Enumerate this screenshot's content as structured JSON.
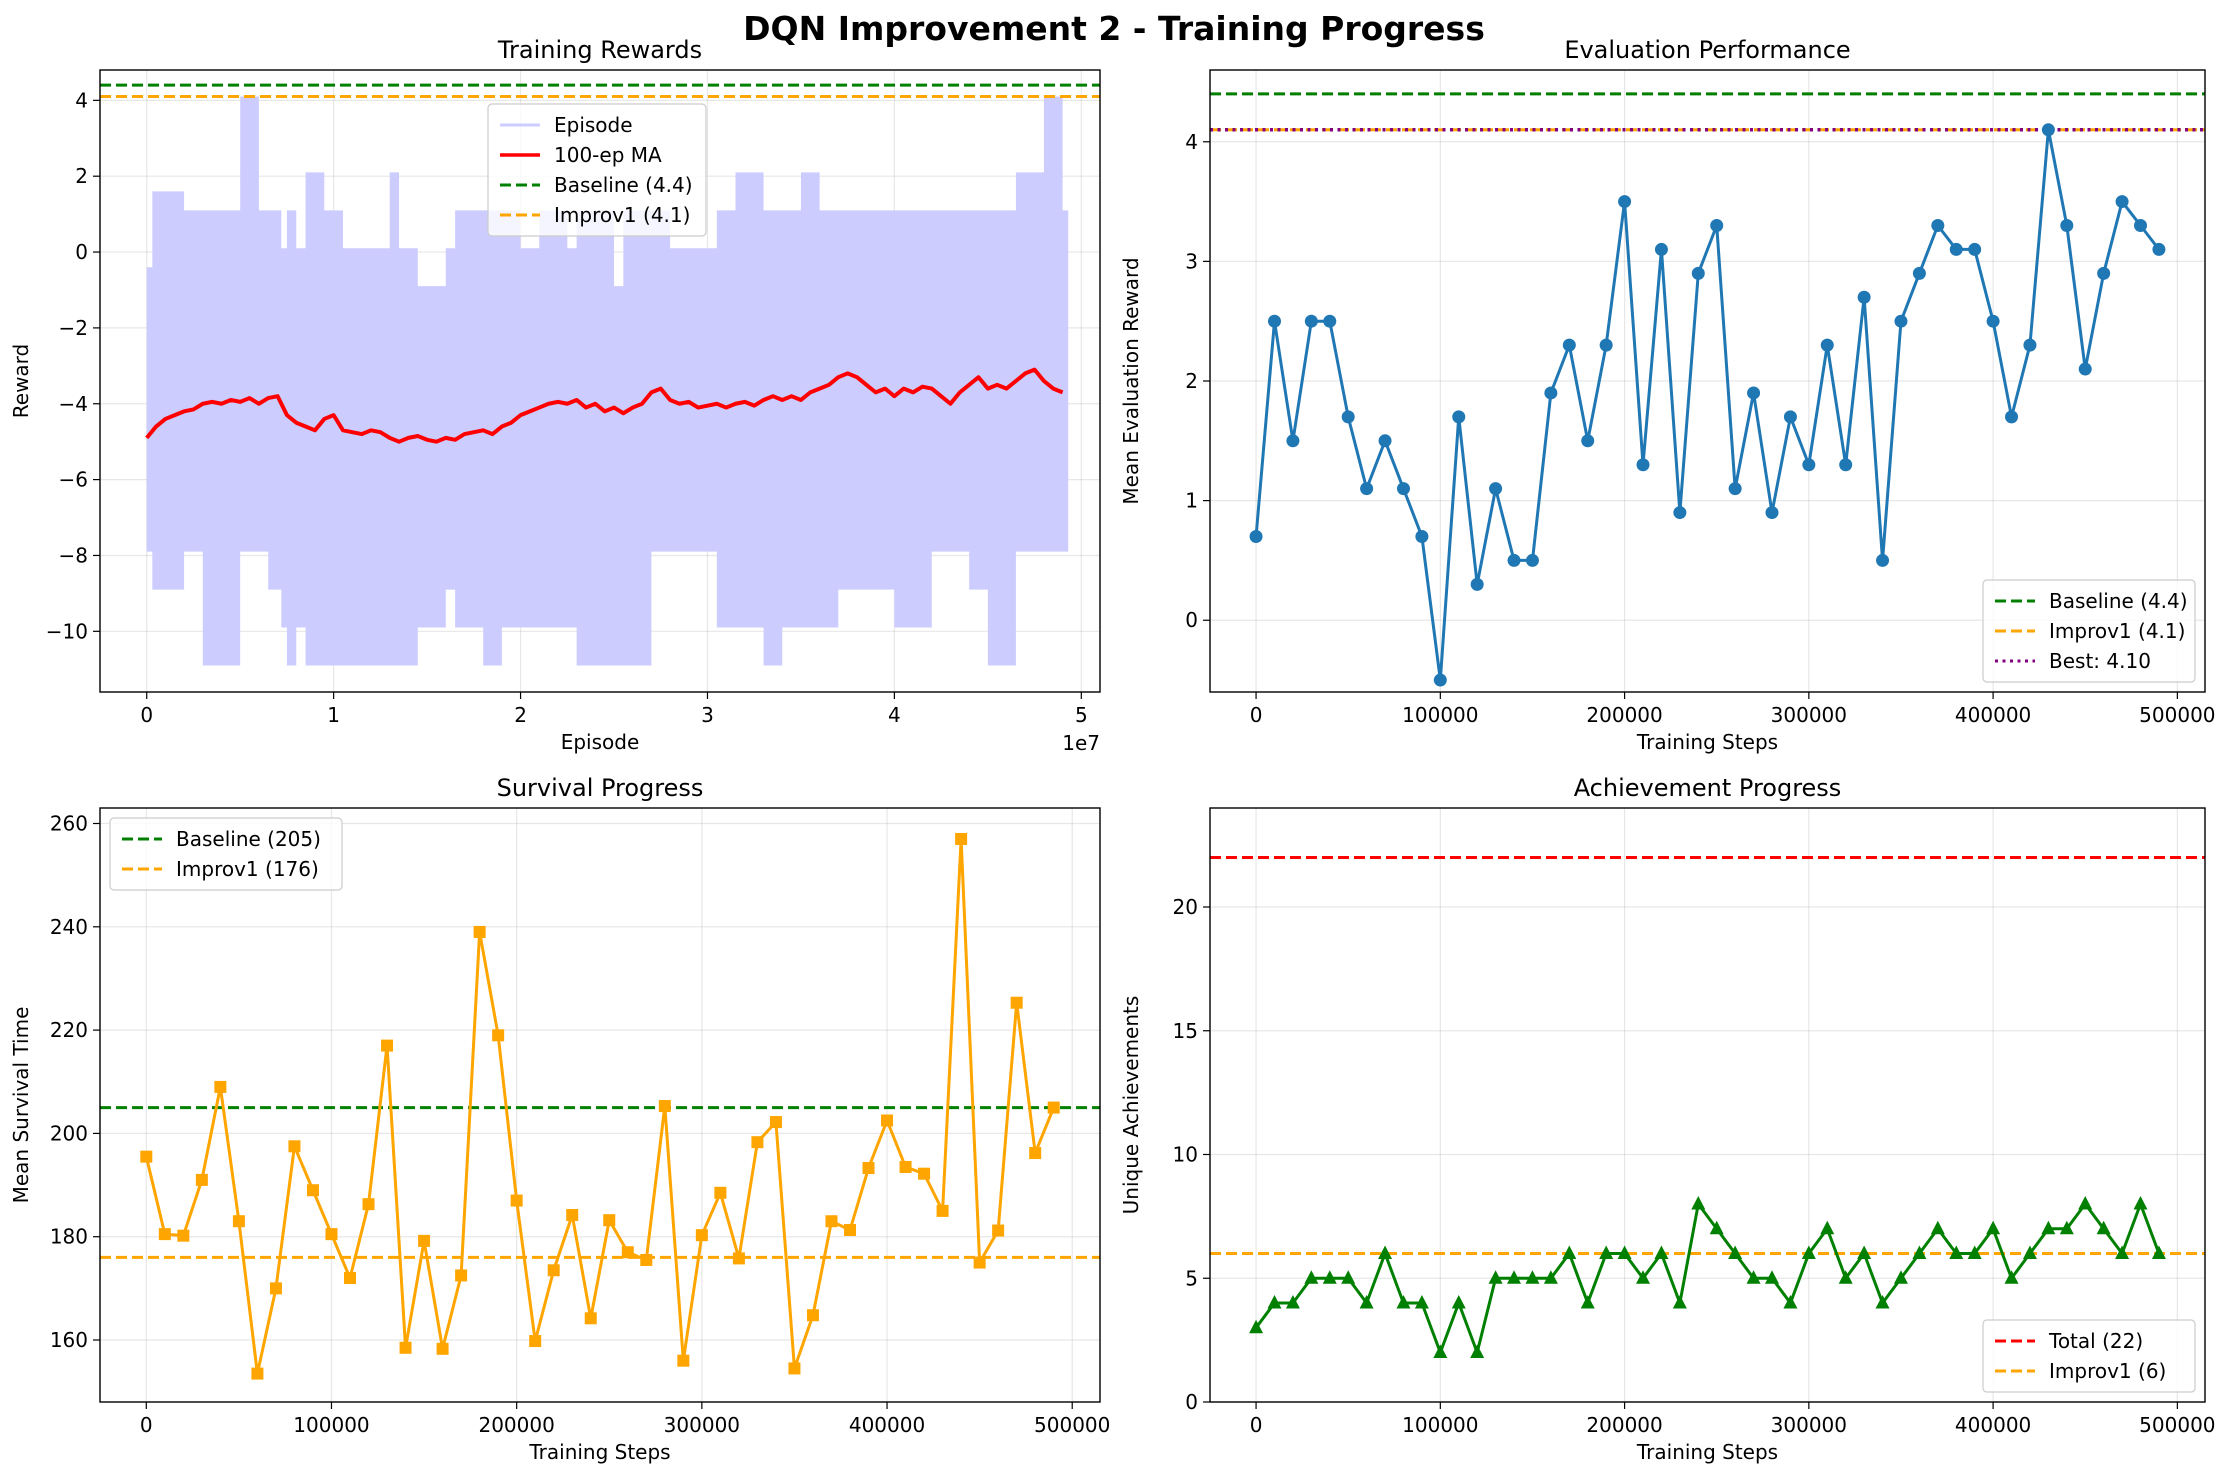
{
  "figure": {
    "title": "DQN Improvement 2 - Training Progress"
  },
  "colors": {
    "baseline": "#008000",
    "improv1": "#ffa500",
    "ma": "#ff0000",
    "episode_fill": "#ccccff",
    "eval_line": "#1f77b4",
    "best": "#800080",
    "survival_line": "#ffa500",
    "achievement_line": "#008000",
    "total": "#ff0000"
  },
  "chart_data": [
    {
      "id": "training-rewards",
      "type": "area",
      "title": "Training Rewards",
      "xlabel": "Episode",
      "ylabel": "Reward",
      "x_offset_label": "1e7",
      "xlim": [
        -0.25,
        5.1
      ],
      "ylim": [
        -11.6,
        4.8
      ],
      "xticks": [
        0,
        1,
        2,
        3,
        4,
        5
      ],
      "yticks": [
        -10,
        -8,
        -6,
        -4,
        -2,
        0,
        2,
        4
      ],
      "legend": [
        "Episode",
        "100-ep MA",
        "Baseline (4.4)",
        "Improv1 (4.1)"
      ],
      "legend_position": "upper center",
      "reference_lines": [
        {
          "name": "Baseline (4.4)",
          "y": 4.4,
          "color": "#008000",
          "style": "dashed"
        },
        {
          "name": "Improv1 (4.1)",
          "y": 4.1,
          "color": "#ffa500",
          "style": "dashed"
        }
      ],
      "episode_band": {
        "x": [
          0,
          0.03,
          0.2,
          0.3,
          0.5,
          0.6,
          0.65,
          0.72,
          0.75,
          0.8,
          0.85,
          0.95,
          1.0,
          1.05,
          1.2,
          1.3,
          1.35,
          1.45,
          1.6,
          1.65,
          1.8,
          1.9,
          2.0,
          2.1,
          2.25,
          2.3,
          2.5,
          2.55,
          2.7,
          2.8,
          2.9,
          3.05,
          3.15,
          3.3,
          3.4,
          3.5,
          3.6,
          3.7,
          3.8,
          4.0,
          4.2,
          4.4,
          4.5,
          4.65,
          4.8,
          4.9
        ],
        "high": [
          -0.4,
          1.6,
          1.1,
          1.1,
          4.1,
          1.1,
          1.1,
          0.1,
          1.1,
          0.1,
          2.1,
          1.1,
          1.1,
          0.1,
          0.1,
          2.1,
          0.1,
          -0.9,
          0.1,
          1.1,
          1.1,
          1.1,
          0.1,
          1.1,
          0.1,
          1.1,
          -0.9,
          1.1,
          1.1,
          0.1,
          0.1,
          1.1,
          2.1,
          1.1,
          1.1,
          2.1,
          1.1,
          1.1,
          1.1,
          1.1,
          1.1,
          1.1,
          1.1,
          2.1,
          4.1,
          1.1
        ],
        "low": [
          -7.9,
          -8.9,
          -7.9,
          -10.9,
          -7.9,
          -7.9,
          -8.9,
          -9.9,
          -10.9,
          -9.9,
          -10.9,
          -10.9,
          -10.9,
          -10.9,
          -10.9,
          -10.9,
          -10.9,
          -9.9,
          -8.9,
          -9.9,
          -10.9,
          -9.9,
          -9.9,
          -9.9,
          -9.9,
          -10.9,
          -10.9,
          -10.9,
          -7.9,
          -7.9,
          -7.9,
          -9.9,
          -9.9,
          -10.9,
          -9.9,
          -9.9,
          -9.9,
          -8.9,
          -8.9,
          -9.9,
          -7.9,
          -8.9,
          -10.9,
          -7.9,
          -7.9,
          -7.9
        ]
      },
      "series": [
        {
          "name": "100-ep MA",
          "x": [
            0,
            0.05,
            0.1,
            0.15,
            0.2,
            0.25,
            0.3,
            0.35,
            0.4,
            0.45,
            0.5,
            0.55,
            0.6,
            0.65,
            0.7,
            0.75,
            0.8,
            0.85,
            0.9,
            0.95,
            1.0,
            1.05,
            1.1,
            1.15,
            1.2,
            1.25,
            1.3,
            1.35,
            1.4,
            1.45,
            1.5,
            1.55,
            1.6,
            1.65,
            1.7,
            1.75,
            1.8,
            1.85,
            1.9,
            1.95,
            2.0,
            2.05,
            2.1,
            2.15,
            2.2,
            2.25,
            2.3,
            2.35,
            2.4,
            2.45,
            2.5,
            2.55,
            2.6,
            2.65,
            2.7,
            2.75,
            2.8,
            2.85,
            2.9,
            2.95,
            3.0,
            3.05,
            3.1,
            3.15,
            3.2,
            3.25,
            3.3,
            3.35,
            3.4,
            3.45,
            3.5,
            3.55,
            3.6,
            3.65,
            3.7,
            3.75,
            3.8,
            3.85,
            3.9,
            3.95,
            4.0,
            4.05,
            4.1,
            4.15,
            4.2,
            4.25,
            4.3,
            4.35,
            4.4,
            4.45,
            4.5,
            4.55,
            4.6,
            4.65,
            4.7,
            4.75,
            4.8,
            4.85,
            4.9
          ],
          "values": [
            -4.9,
            -4.6,
            -4.4,
            -4.3,
            -4.2,
            -4.15,
            -4.0,
            -3.95,
            -4.0,
            -3.9,
            -3.95,
            -3.85,
            -4.0,
            -3.85,
            -3.8,
            -4.3,
            -4.5,
            -4.6,
            -4.7,
            -4.4,
            -4.3,
            -4.7,
            -4.75,
            -4.8,
            -4.7,
            -4.75,
            -4.9,
            -5.0,
            -4.9,
            -4.85,
            -4.95,
            -5.0,
            -4.9,
            -4.95,
            -4.8,
            -4.75,
            -4.7,
            -4.8,
            -4.6,
            -4.5,
            -4.3,
            -4.2,
            -4.1,
            -4.0,
            -3.95,
            -4.0,
            -3.9,
            -4.1,
            -4.0,
            -4.2,
            -4.1,
            -4.25,
            -4.1,
            -4.0,
            -3.7,
            -3.6,
            -3.9,
            -4.0,
            -3.95,
            -4.1,
            -4.05,
            -4.0,
            -4.1,
            -4.0,
            -3.95,
            -4.05,
            -3.9,
            -3.8,
            -3.9,
            -3.8,
            -3.9,
            -3.7,
            -3.6,
            -3.5,
            -3.3,
            -3.2,
            -3.3,
            -3.5,
            -3.7,
            -3.6,
            -3.8,
            -3.6,
            -3.7,
            -3.55,
            -3.6,
            -3.8,
            -4.0,
            -3.7,
            -3.5,
            -3.3,
            -3.6,
            -3.5,
            -3.6,
            -3.4,
            -3.2,
            -3.1,
            -3.4,
            -3.6,
            -3.7
          ]
        }
      ]
    },
    {
      "id": "evaluation-performance",
      "type": "line",
      "title": "Evaluation Performance",
      "xlabel": "Training Steps",
      "ylabel": "Mean Evaluation Reward",
      "xlim": [
        -25000,
        515000
      ],
      "ylim": [
        -0.6,
        4.6
      ],
      "xticks": [
        0,
        100000,
        200000,
        300000,
        400000,
        500000
      ],
      "yticks": [
        0,
        1,
        2,
        3,
        4
      ],
      "legend": [
        "Baseline (4.4)",
        "Improv1 (4.1)",
        "Best: 4.10"
      ],
      "legend_position": "lower right",
      "reference_lines": [
        {
          "name": "Baseline (4.4)",
          "y": 4.4,
          "color": "#008000",
          "style": "dashed"
        },
        {
          "name": "Improv1 (4.1)",
          "y": 4.1,
          "color": "#ffa500",
          "style": "dashed"
        },
        {
          "name": "Best: 4.10",
          "y": 4.1,
          "color": "#800080",
          "style": "dotted"
        }
      ],
      "series": [
        {
          "name": "",
          "marker": "circle",
          "x": [
            0,
            10000,
            20000,
            30000,
            40000,
            50000,
            60000,
            70000,
            80000,
            90000,
            100000,
            110000,
            120000,
            130000,
            140000,
            150000,
            160000,
            170000,
            180000,
            190000,
            200000,
            210000,
            220000,
            230000,
            240000,
            250000,
            260000,
            270000,
            280000,
            290000,
            300000,
            310000,
            320000,
            330000,
            340000,
            350000,
            360000,
            370000,
            380000,
            390000,
            400000,
            410000,
            420000,
            430000,
            440000,
            450000,
            460000,
            470000,
            480000,
            490000
          ],
          "values": [
            0.7,
            2.5,
            1.5,
            2.5,
            2.5,
            1.7,
            1.1,
            1.5,
            1.1,
            0.7,
            -0.5,
            1.7,
            0.3,
            1.1,
            0.5,
            0.5,
            1.9,
            2.3,
            1.5,
            2.3,
            3.5,
            1.3,
            3.1,
            0.9,
            2.9,
            3.3,
            1.1,
            1.9,
            0.9,
            1.7,
            1.3,
            2.3,
            1.3,
            2.7,
            0.5,
            2.5,
            2.9,
            3.3,
            3.1,
            3.1,
            2.5,
            1.7,
            2.3,
            4.1,
            3.3,
            2.1,
            2.9,
            3.5,
            3.3,
            3.1
          ]
        }
      ]
    },
    {
      "id": "survival-progress",
      "type": "line",
      "title": "Survival Progress",
      "xlabel": "Training Steps",
      "ylabel": "Mean Survival Time",
      "xlim": [
        -25000,
        515000
      ],
      "ylim": [
        148,
        263
      ],
      "xticks": [
        0,
        100000,
        200000,
        300000,
        400000,
        500000
      ],
      "yticks": [
        160,
        180,
        200,
        220,
        240,
        260
      ],
      "legend": [
        "Baseline (205)",
        "Improv1 (176)"
      ],
      "legend_position": "upper left",
      "reference_lines": [
        {
          "name": "Baseline (205)",
          "y": 205,
          "color": "#008000",
          "style": "dashed"
        },
        {
          "name": "Improv1 (176)",
          "y": 176,
          "color": "#ffa500",
          "style": "dashed"
        }
      ],
      "series": [
        {
          "name": "",
          "marker": "square",
          "x": [
            0,
            10000,
            20000,
            30000,
            40000,
            50000,
            60000,
            70000,
            80000,
            90000,
            100000,
            110000,
            120000,
            130000,
            140000,
            150000,
            160000,
            170000,
            180000,
            190000,
            200000,
            210000,
            220000,
            230000,
            240000,
            250000,
            260000,
            270000,
            280000,
            290000,
            300000,
            310000,
            320000,
            330000,
            340000,
            350000,
            360000,
            370000,
            380000,
            390000,
            400000,
            410000,
            420000,
            430000,
            440000,
            450000,
            460000,
            470000,
            480000,
            490000
          ],
          "values": [
            195.5,
            180.5,
            180.2,
            191,
            209,
            183,
            153.5,
            170,
            197.5,
            189,
            180.5,
            172,
            186.3,
            217,
            158.5,
            179.2,
            158.3,
            172.5,
            239,
            219,
            187,
            159.8,
            173.5,
            184.2,
            164.2,
            183.2,
            177,
            175.5,
            205.3,
            156,
            180.3,
            188.5,
            175.8,
            198.3,
            202.2,
            154.5,
            164.8,
            183,
            181.3,
            193.3,
            202.5,
            193.5,
            192.2,
            185,
            257,
            175,
            181.2,
            225.3,
            196.2,
            205
          ]
        }
      ]
    },
    {
      "id": "achievement-progress",
      "type": "line",
      "title": "Achievement Progress",
      "xlabel": "Training Steps",
      "ylabel": "Unique Achievements",
      "xlim": [
        -25000,
        515000
      ],
      "ylim": [
        0,
        24
      ],
      "xticks": [
        0,
        100000,
        200000,
        300000,
        400000,
        500000
      ],
      "yticks": [
        0,
        5,
        10,
        15,
        20
      ],
      "legend": [
        "Total (22)",
        "Improv1 (6)"
      ],
      "legend_position": "lower right",
      "reference_lines": [
        {
          "name": "Total (22)",
          "y": 22,
          "color": "#ff0000",
          "style": "dashed"
        },
        {
          "name": "Improv1 (6)",
          "y": 6,
          "color": "#ffa500",
          "style": "dashed"
        }
      ],
      "series": [
        {
          "name": "",
          "marker": "triangle",
          "x": [
            0,
            10000,
            20000,
            30000,
            40000,
            50000,
            60000,
            70000,
            80000,
            90000,
            100000,
            110000,
            120000,
            130000,
            140000,
            150000,
            160000,
            170000,
            180000,
            190000,
            200000,
            210000,
            220000,
            230000,
            240000,
            250000,
            260000,
            270000,
            280000,
            290000,
            300000,
            310000,
            320000,
            330000,
            340000,
            350000,
            360000,
            370000,
            380000,
            390000,
            400000,
            410000,
            420000,
            430000,
            440000,
            450000,
            460000,
            470000,
            480000,
            490000
          ],
          "values": [
            3,
            4,
            4,
            5,
            5,
            5,
            4,
            6,
            4,
            4,
            2,
            4,
            2,
            5,
            5,
            5,
            5,
            6,
            4,
            6,
            6,
            5,
            6,
            4,
            8,
            7,
            6,
            5,
            5,
            4,
            6,
            7,
            5,
            6,
            4,
            5,
            6,
            7,
            6,
            6,
            7,
            5,
            6,
            7,
            7,
            8,
            7,
            6,
            8,
            6
          ]
        }
      ]
    }
  ]
}
